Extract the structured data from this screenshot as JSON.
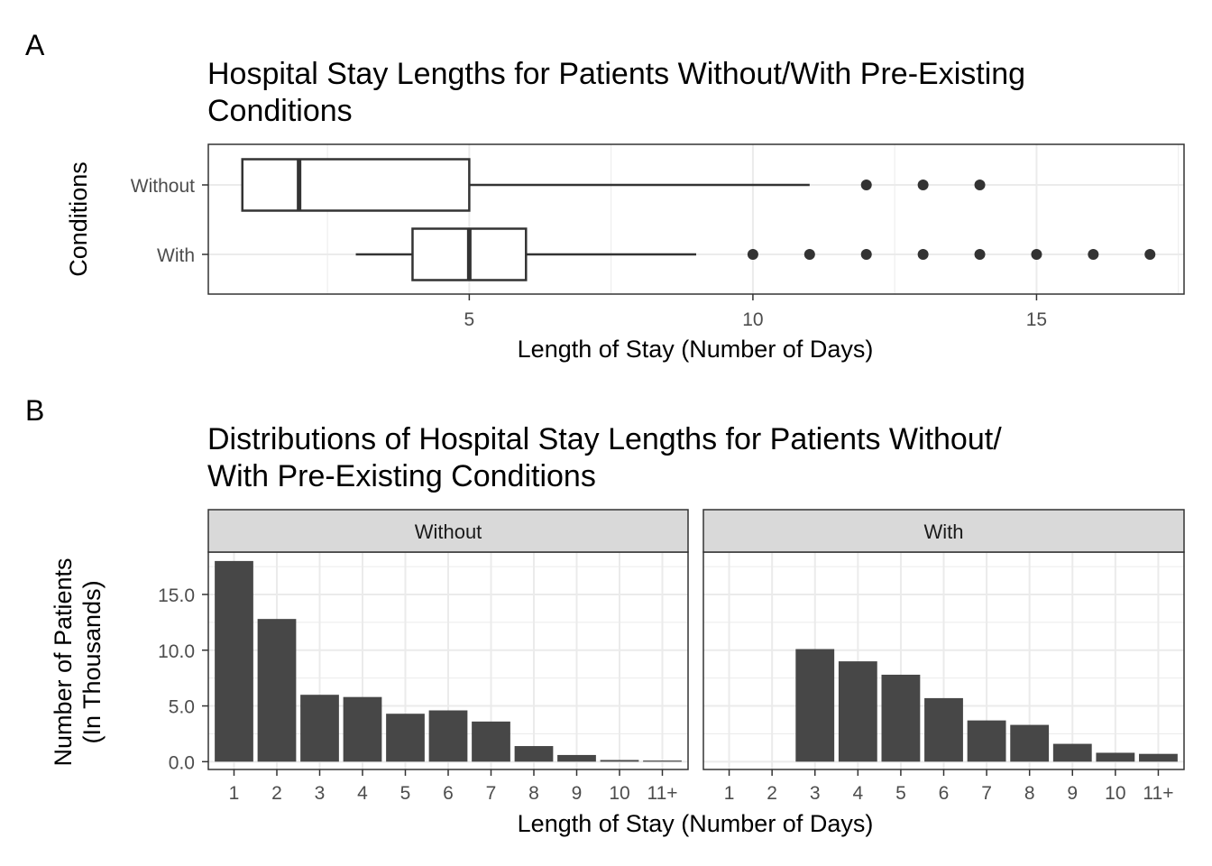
{
  "chart_data": [
    {
      "panel_tag": "A",
      "type": "boxplot",
      "orientation": "horizontal",
      "title_lines": [
        "Hospital Stay Lengths for Patients Without/With Pre-Existing",
        "Conditions"
      ],
      "xlabel": "Length of Stay (Number of Days)",
      "ylabel": "Conditions",
      "xlim": [
        0.4,
        17.6
      ],
      "xticks": [
        5,
        10,
        15
      ],
      "grid": true,
      "categories": [
        "Without",
        "With"
      ],
      "boxes": [
        {
          "name": "Without",
          "whisker_low": 1,
          "q1": 1,
          "median": 2,
          "q3": 5,
          "whisker_high": 11,
          "outliers": [
            12,
            13,
            14
          ]
        },
        {
          "name": "With",
          "whisker_low": 3,
          "q1": 4,
          "median": 5,
          "q3": 6,
          "whisker_high": 9,
          "outliers": [
            10,
            11,
            12,
            13,
            14,
            15,
            16,
            17
          ]
        }
      ]
    },
    {
      "panel_tag": "B",
      "type": "bar",
      "facets": [
        "Without",
        "With"
      ],
      "title_lines": [
        "Distributions of Hospital Stay Lengths for Patients Without/",
        "With Pre-Existing Conditions"
      ],
      "xlabel": "Length of Stay (Number of Days)",
      "ylabel_lines": [
        "Number of Patients",
        "(In Thousands)"
      ],
      "categories": [
        "1",
        "2",
        "3",
        "4",
        "5",
        "6",
        "7",
        "8",
        "9",
        "10",
        "11+"
      ],
      "ylim": [
        -0.7,
        18.8
      ],
      "yticks": [
        0,
        5,
        10,
        15
      ],
      "ytick_labels": [
        "0.0",
        "5.0",
        "10.0",
        "15.0"
      ],
      "grid": true,
      "series": [
        {
          "name": "Without",
          "values": [
            18.0,
            12.8,
            6.0,
            5.8,
            4.3,
            4.6,
            3.6,
            1.4,
            0.6,
            0.15,
            0.1
          ]
        },
        {
          "name": "With",
          "values": [
            0,
            0,
            10.1,
            9.0,
            7.8,
            5.7,
            3.7,
            3.3,
            1.6,
            0.8,
            0.7
          ]
        }
      ]
    }
  ],
  "colors": {
    "bar_fill": "#474747",
    "strip_fill": "#d9d9d9",
    "frame": "#333333",
    "grid": "#ebebeb",
    "point": "#333333"
  }
}
